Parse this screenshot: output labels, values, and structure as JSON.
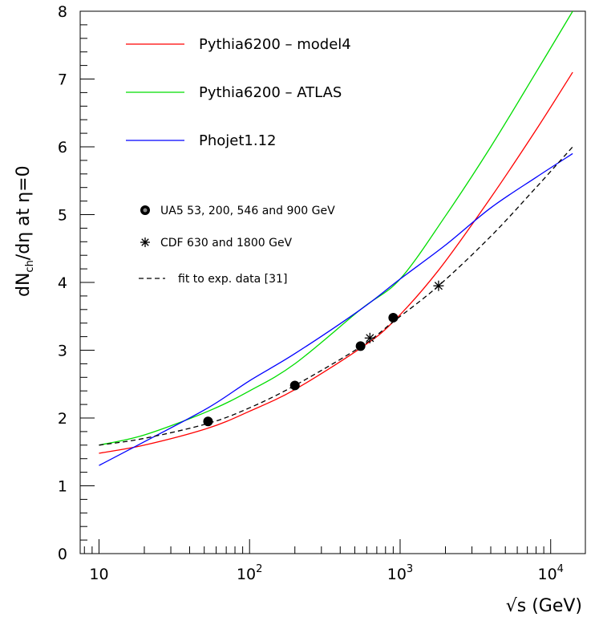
{
  "chart_data": {
    "type": "line",
    "xlabel": "√s (GeV)",
    "ylabel": "dN_ch/dη  at  η=0",
    "ylabel_main": "dN",
    "ylabel_sub": "ch",
    "ylabel_rest": "/dη  at  η=0",
    "xscale": "log",
    "xlim": [
      7.5,
      17000
    ],
    "ylim": [
      0,
      8
    ],
    "xticks": [
      10,
      100,
      1000,
      10000
    ],
    "xtick_labels": [
      {
        "base": "10",
        "exp": ""
      },
      {
        "base": "10",
        "exp": "2"
      },
      {
        "base": "10",
        "exp": "3"
      },
      {
        "base": "10",
        "exp": "4"
      }
    ],
    "yticks": [
      0,
      1,
      2,
      3,
      4,
      5,
      6,
      7,
      8
    ],
    "ytick_labels": [
      "0",
      "1",
      "2",
      "3",
      "4",
      "5",
      "6",
      "7",
      "8"
    ],
    "grid": false,
    "legend_position": "top-left",
    "series": [
      {
        "name": "Pythia6200 – model4",
        "style": "line",
        "color": "#ff0000",
        "x": [
          10,
          20,
          53,
          100,
          200,
          546,
          900,
          1800,
          4000,
          8000,
          14000
        ],
        "y": [
          1.48,
          1.6,
          1.85,
          2.1,
          2.42,
          3.03,
          3.42,
          4.18,
          5.25,
          6.25,
          7.1
        ]
      },
      {
        "name": "Pythia6200 – ATLAS",
        "style": "line",
        "color": "#00dd00",
        "x": [
          10,
          20,
          53,
          100,
          200,
          546,
          1000,
          2000,
          4000,
          8000,
          14000
        ],
        "y": [
          1.6,
          1.75,
          2.1,
          2.4,
          2.8,
          3.6,
          4.05,
          4.98,
          6.0,
          7.1,
          8.0
        ]
      },
      {
        "name": "Phojet1.12",
        "style": "line",
        "color": "#0000ff",
        "x": [
          10,
          20,
          53,
          100,
          200,
          546,
          1000,
          2000,
          4000,
          8000,
          14000
        ],
        "y": [
          1.3,
          1.65,
          2.15,
          2.55,
          2.95,
          3.6,
          4.05,
          4.55,
          5.1,
          5.55,
          5.9
        ]
      },
      {
        "name": "fit to exp. data [31]",
        "style": "dashed",
        "color": "#000000",
        "x": [
          10,
          20,
          53,
          100,
          200,
          546,
          900,
          1800,
          4000,
          8000,
          14000
        ],
        "y": [
          1.6,
          1.7,
          1.92,
          2.15,
          2.48,
          3.05,
          3.42,
          3.95,
          4.68,
          5.4,
          6.0
        ]
      },
      {
        "name": "UA5 53, 200, 546 and 900 GeV",
        "style": "marker-circle",
        "color": "#000000",
        "x": [
          53,
          200,
          546,
          900
        ],
        "y": [
          1.95,
          2.48,
          3.06,
          3.48
        ]
      },
      {
        "name": "CDF 630 and 1800 GeV",
        "style": "marker-star",
        "color": "#000000",
        "x": [
          630,
          1800
        ],
        "y": [
          3.18,
          3.95
        ]
      }
    ]
  }
}
